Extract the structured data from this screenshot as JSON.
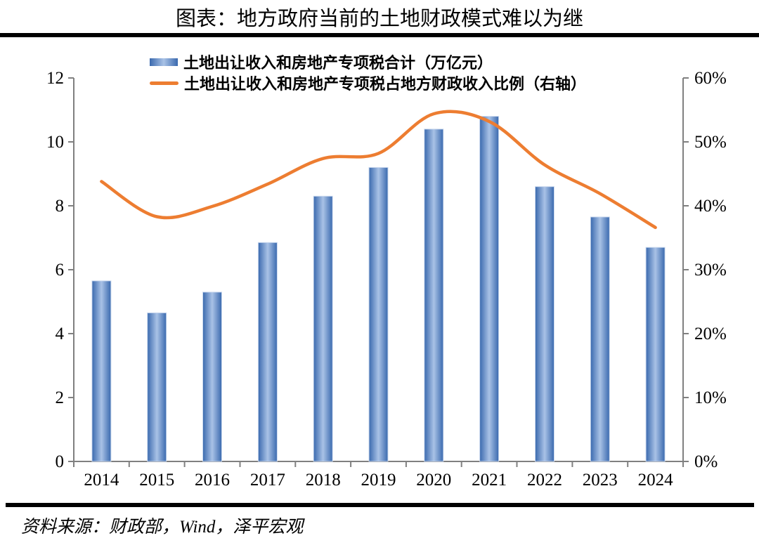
{
  "title": "图表：地方政府当前的土地财政模式难以为继",
  "source_note": "资料来源：财政部，Wind，泽平宏观",
  "legend": {
    "bar_label": "土地出让收入和房地产专项税合计（万亿元）",
    "line_label": "土地出让收入和房地产专项税占地方财政收入比例（右轴）"
  },
  "colors": {
    "bar_edge": "#3A69AE",
    "bar_mid": "#A9C2E6",
    "bar_outline": "#CBD9EE",
    "line": "#ED7D31",
    "axis": "#808080",
    "text": "#000000"
  },
  "chart_data": {
    "type": "combo-bar-line",
    "title": "图表：地方政府当前的土地财政模式难以为继",
    "categories": [
      "2014",
      "2015",
      "2016",
      "2017",
      "2018",
      "2019",
      "2020",
      "2021",
      "2022",
      "2023",
      "2024"
    ],
    "series": [
      {
        "name": "土地出让收入和房地产专项税合计（万亿元）",
        "type": "bar",
        "axis": "left",
        "unit": "万亿元",
        "values": [
          5.65,
          4.65,
          5.3,
          6.85,
          8.3,
          9.2,
          10.4,
          10.8,
          8.6,
          7.65,
          6.7
        ]
      },
      {
        "name": "土地出让收入和房地产专项税占地方财政收入比例（右轴）",
        "type": "line",
        "axis": "right",
        "unit": "%",
        "values": [
          43.8,
          38.3,
          39.9,
          43.4,
          47.4,
          48.2,
          54.4,
          53.2,
          46.4,
          41.9,
          36.6
        ]
      }
    ],
    "left_axis": {
      "min": 0,
      "max": 12,
      "tick_step": 2,
      "tick_labels": [
        "0",
        "2",
        "4",
        "6",
        "8",
        "10",
        "12"
      ]
    },
    "right_axis": {
      "min": 0,
      "max": 60,
      "tick_step": 10,
      "tick_labels": [
        "0%",
        "10%",
        "20%",
        "30%",
        "40%",
        "50%",
        "60%"
      ]
    },
    "legend_position": "top",
    "grid": false,
    "smooth_line": true
  }
}
